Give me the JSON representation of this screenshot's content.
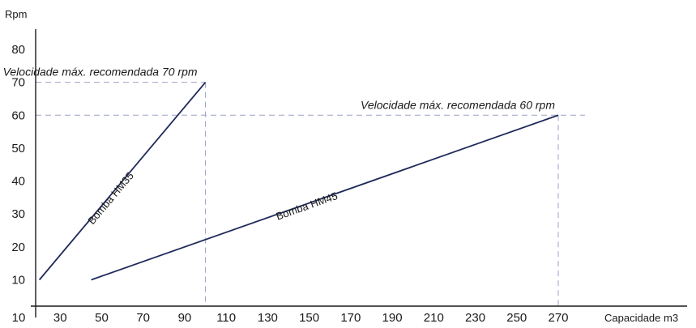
{
  "chart_data": {
    "type": "line",
    "xlabel": "Capacidade m3",
    "ylabel": "Rpm",
    "xlim": [
      0,
      280
    ],
    "ylim": [
      2,
      85
    ],
    "x_ticks": [
      10,
      30,
      50,
      70,
      90,
      110,
      130,
      150,
      170,
      190,
      210,
      230,
      250,
      270
    ],
    "y_ticks": [
      10,
      20,
      30,
      40,
      50,
      60,
      70,
      80
    ],
    "grid": false,
    "series": [
      {
        "name": "Bomba HM35",
        "points": [
          [
            20,
            10
          ],
          [
            100,
            70
          ]
        ]
      },
      {
        "name": "Bomba HM45",
        "points": [
          [
            45,
            10
          ],
          [
            270,
            60
          ]
        ]
      }
    ],
    "annotations": [
      {
        "text": "Velocidade máx. recomendada 70 rpm",
        "x": 100,
        "y": 70
      },
      {
        "text": "Velocidade máx. recomendada 60 rpm",
        "x": 270,
        "y": 60
      }
    ],
    "colors": {
      "line": "#1f2a5a",
      "reference": "#9ea3c8",
      "axis": "#1a1a1a"
    }
  }
}
